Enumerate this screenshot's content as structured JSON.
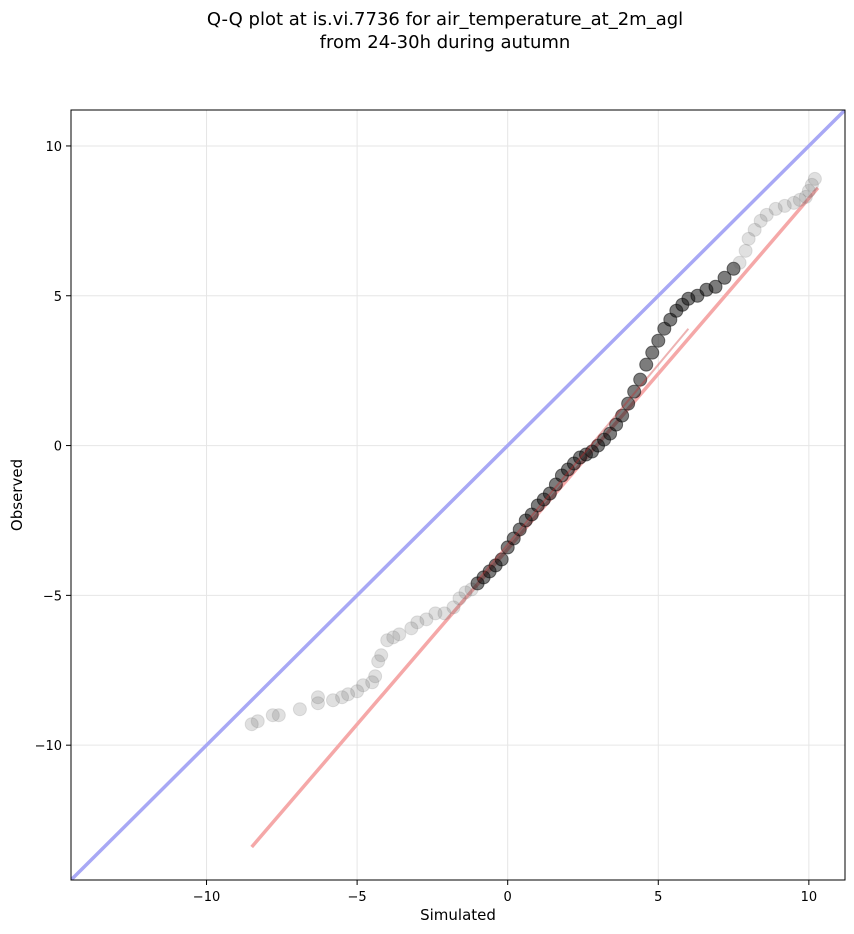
{
  "chart_data": {
    "type": "scatter",
    "title_lines": [
      "Q-Q plot at is.vi.7736 for air_temperature_at_2m_agl",
      "from 24-30h during autumn"
    ],
    "xlabel": "Simulated",
    "ylabel": "Observed",
    "xlim": [
      -14.5,
      11.2
    ],
    "ylim": [
      -14.5,
      11.2
    ],
    "grid": true,
    "x_ticks": [
      -10,
      -5,
      0,
      5,
      10
    ],
    "y_ticks": [
      -10,
      -5,
      0,
      5,
      10
    ],
    "x_tick_labels": [
      "−10",
      "−5",
      "0",
      "5",
      "10"
    ],
    "y_tick_labels": [
      "−10",
      "−5",
      "0",
      "5",
      "10"
    ],
    "colors": {
      "points": "#555555",
      "identity_line": "#a8a8f5",
      "fit_line": "#f5a8a8",
      "points_dense": "#111111"
    },
    "identity_line": {
      "x": [
        -14.5,
        11.2
      ],
      "y": [
        -14.5,
        11.2
      ]
    },
    "fit_line": {
      "x": [
        -8.5,
        10.3
      ],
      "y": [
        -13.4,
        8.6
      ]
    },
    "points": {
      "x": [
        -8.5,
        -8.3,
        -7.8,
        -7.6,
        -6.9,
        -6.3,
        -6.3,
        -5.8,
        -5.5,
        -5.3,
        -5.0,
        -4.8,
        -4.5,
        -4.4,
        -4.3,
        -4.2,
        -4.0,
        -3.8,
        -3.6,
        -3.2,
        -3.0,
        -2.7,
        -2.4,
        -2.1,
        -1.8,
        -1.6,
        -1.4,
        -1.2,
        -1.0,
        -0.8,
        -0.6,
        -0.4,
        -0.2,
        0.0,
        0.2,
        0.4,
        0.6,
        0.8,
        1.0,
        1.2,
        1.4,
        1.6,
        1.8,
        2.0,
        2.2,
        2.4,
        2.6,
        2.8,
        3.0,
        3.2,
        3.4,
        3.6,
        3.8,
        4.0,
        4.2,
        4.4,
        4.6,
        4.8,
        5.0,
        5.2,
        5.4,
        5.6,
        5.8,
        6.0,
        6.3,
        6.6,
        6.9,
        7.2,
        7.5,
        7.7,
        7.9,
        8.0,
        8.2,
        8.4,
        8.6,
        8.9,
        9.2,
        9.5,
        9.7,
        9.9,
        10.0,
        10.1,
        10.2
      ],
      "y": [
        -9.3,
        -9.2,
        -9.0,
        -9.0,
        -8.8,
        -8.6,
        -8.4,
        -8.5,
        -8.4,
        -8.3,
        -8.2,
        -8.0,
        -7.9,
        -7.7,
        -7.2,
        -7.0,
        -6.5,
        -6.4,
        -6.3,
        -6.1,
        -5.9,
        -5.8,
        -5.6,
        -5.6,
        -5.4,
        -5.1,
        -4.9,
        -4.8,
        -4.6,
        -4.4,
        -4.2,
        -4.0,
        -3.8,
        -3.4,
        -3.1,
        -2.8,
        -2.5,
        -2.3,
        -2.0,
        -1.8,
        -1.6,
        -1.3,
        -1.0,
        -0.8,
        -0.6,
        -0.4,
        -0.3,
        -0.2,
        0.0,
        0.2,
        0.4,
        0.7,
        1.0,
        1.4,
        1.8,
        2.2,
        2.7,
        3.1,
        3.5,
        3.9,
        4.2,
        4.5,
        4.7,
        4.9,
        5.0,
        5.2,
        5.3,
        5.6,
        5.9,
        6.1,
        6.5,
        6.9,
        7.2,
        7.5,
        7.7,
        7.9,
        8.0,
        8.1,
        8.2,
        8.3,
        8.5,
        8.7,
        8.9
      ]
    }
  }
}
